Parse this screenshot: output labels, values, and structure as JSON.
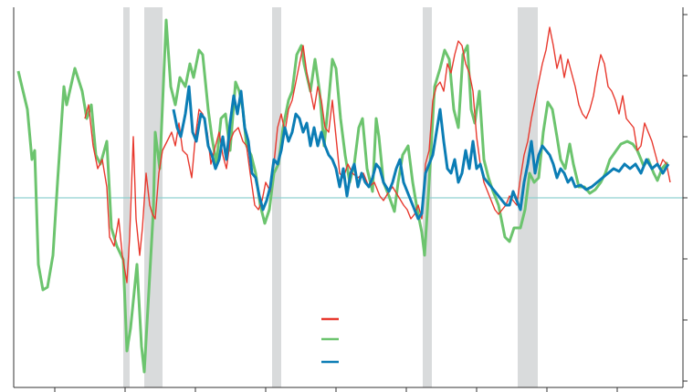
{
  "chart_data": {
    "type": "line",
    "xlim": [
      15,
      748
    ],
    "ylim": [
      -208,
      209
    ],
    "xticks": [
      60,
      137,
      214,
      291,
      368,
      445,
      522,
      599,
      676
    ],
    "yticks": [
      -201,
      -134,
      -67,
      0,
      67,
      134,
      201
    ],
    "reference_line": 0,
    "reference_color": "#8fd0d0",
    "band_color": "#d9dbdc",
    "shaded_regions": [
      [
        135,
        142
      ],
      [
        158,
        178
      ],
      [
        298,
        308
      ],
      [
        463,
        473
      ],
      [
        567,
        589
      ]
    ],
    "series": [
      {
        "color": "#6cc46e",
        "x": [
          20,
          30,
          35,
          38,
          42,
          47,
          52,
          58,
          63,
          70,
          73,
          82,
          90,
          95,
          100,
          105,
          110,
          117,
          122,
          128,
          135,
          139,
          143,
          150,
          155,
          158,
          163,
          168,
          170,
          175,
          182,
          187,
          192,
          197,
          203,
          208,
          212,
          218,
          222,
          228,
          232,
          237,
          242,
          247,
          252,
          258,
          262,
          266,
          270,
          275,
          280,
          285,
          290,
          295,
          300,
          305,
          310,
          316,
          320,
          325,
          330,
          333,
          340,
          345,
          350,
          355,
          360,
          364,
          368,
          373,
          378,
          383,
          388,
          393,
          397,
          402,
          408,
          412,
          415,
          420,
          426,
          432,
          436,
          441,
          447,
          452,
          457,
          462,
          465,
          470,
          476,
          482,
          487,
          492,
          497,
          502,
          507,
          512,
          516,
          520,
          525,
          530,
          535,
          540,
          546,
          553,
          558,
          563,
          570,
          575,
          580,
          585,
          590,
          595,
          600,
          605,
          610,
          614,
          619,
          624,
          628,
          634,
          640,
          646,
          652,
          658,
          663,
          668,
          675,
          680,
          687,
          693,
          698,
          705,
          710,
          716,
          720,
          725,
          731
        ],
        "values": [
          139,
          97,
          42,
          52,
          -73,
          -101,
          -98,
          -63,
          17,
          122,
          102,
          142,
          117,
          87,
          102,
          47,
          37,
          62,
          -33,
          -53,
          -68,
          -168,
          -143,
          -73,
          -163,
          -191,
          -103,
          -13,
          72,
          32,
          195,
          122,
          102,
          132,
          122,
          147,
          132,
          162,
          157,
          97,
          67,
          37,
          87,
          92,
          52,
          127,
          117,
          97,
          57,
          47,
          27,
          -8,
          -28,
          -13,
          27,
          37,
          77,
          107,
          117,
          157,
          167,
          147,
          117,
          152,
          117,
          57,
          107,
          152,
          142,
          87,
          47,
          17,
          37,
          77,
          87,
          32,
          7,
          87,
          67,
          17,
          2,
          -15,
          17,
          47,
          57,
          17,
          -13,
          -38,
          -63,
          17,
          122,
          142,
          162,
          152,
          97,
          77,
          157,
          167,
          97,
          82,
          117,
          42,
          22,
          7,
          -8,
          -43,
          -48,
          -33,
          -33,
          -13,
          27,
          17,
          22,
          72,
          105,
          97,
          67,
          42,
          32,
          59,
          37,
          12,
          12,
          5,
          9,
          17,
          27,
          42,
          52,
          59,
          62,
          59,
          52,
          35,
          42,
          27,
          19,
          32,
          39
        ]
      },
      {
        "color": "#e8392e",
        "x": [
          93,
          97,
          102,
          107,
          112,
          117,
          120,
          125,
          130,
          134,
          139,
          142,
          146,
          149,
          153,
          156,
          160,
          164,
          167,
          170,
          174,
          178,
          183,
          188,
          192,
          196,
          200,
          205,
          210,
          214,
          218,
          222,
          227,
          231,
          236,
          240,
          244,
          248,
          252,
          256,
          261,
          266,
          270,
          274,
          279,
          283,
          287,
          291,
          296,
          300,
          304,
          308,
          312,
          316,
          320,
          324,
          328,
          332,
          336,
          340,
          344,
          348,
          352,
          356,
          360,
          364,
          368,
          372,
          376,
          381,
          386,
          392,
          398,
          404,
          410,
          416,
          420,
          426,
          430,
          436,
          442,
          446,
          450,
          454,
          458,
          462,
          466,
          470,
          474,
          478,
          482,
          486,
          490,
          494,
          498,
          502,
          506,
          510,
          514,
          518,
          522,
          526,
          530,
          534,
          538,
          542,
          546,
          550,
          554,
          558,
          562,
          566,
          570,
          574,
          578,
          582,
          586,
          590,
          594,
          598,
          602,
          606,
          610,
          614,
          618,
          622,
          626,
          630,
          634,
          638,
          642,
          646,
          650,
          654,
          658,
          662,
          666,
          670,
          674,
          678,
          682,
          686,
          690,
          694,
          698,
          702,
          706,
          710,
          714,
          718,
          722,
          726,
          730,
          734
        ],
        "values": [
          87,
          102,
          57,
          32,
          42,
          12,
          -43,
          -53,
          -23,
          -63,
          -93,
          -43,
          67,
          -23,
          -63,
          -33,
          27,
          -8,
          -18,
          -23,
          27,
          52,
          62,
          72,
          57,
          82,
          52,
          47,
          22,
          67,
          97,
          92,
          72,
          37,
          57,
          72,
          47,
          32,
          62,
          72,
          77,
          62,
          57,
          27,
          -8,
          -13,
          -3,
          17,
          7,
          37,
          77,
          92,
          72,
          97,
          107,
          127,
          147,
          167,
          137,
          117,
          97,
          122,
          107,
          77,
          72,
          107,
          67,
          27,
          22,
          37,
          27,
          22,
          27,
          12,
          17,
          2,
          -3,
          7,
          12,
          2,
          -8,
          -13,
          -23,
          -18,
          -8,
          -23,
          37,
          52,
          107,
          122,
          127,
          117,
          147,
          137,
          157,
          172,
          167,
          147,
          137,
          117,
          67,
          37,
          17,
          7,
          -3,
          -13,
          -18,
          -13,
          -8,
          2,
          -3,
          -8,
          22,
          47,
          62,
          87,
          107,
          127,
          147,
          162,
          187,
          167,
          142,
          157,
          132,
          152,
          137,
          122,
          102,
          92,
          87,
          97,
          112,
          137,
          157,
          147,
          122,
          117,
          107,
          92,
          112,
          87,
          82,
          77,
          52,
          57,
          82,
          72,
          62,
          47,
          32,
          42,
          37,
          17
        ]
      },
      {
        "color": "#0b7db5",
        "x": [
          190,
          194,
          198,
          203,
          207,
          211,
          215,
          220,
          224,
          228,
          232,
          236,
          240,
          244,
          248,
          252,
          256,
          260,
          264,
          268,
          272,
          276,
          280,
          284,
          288,
          292,
          296,
          300,
          304,
          308,
          312,
          316,
          320,
          324,
          328,
          332,
          336,
          340,
          344,
          348,
          352,
          356,
          360,
          364,
          368,
          372,
          376,
          380,
          384,
          388,
          392,
          396,
          400,
          404,
          408,
          412,
          416,
          420,
          426,
          430,
          434,
          438,
          442,
          446,
          450,
          454,
          458,
          462,
          466,
          470,
          474,
          478,
          482,
          486,
          490,
          494,
          498,
          502,
          506,
          510,
          514,
          518,
          522,
          526,
          530,
          534,
          538,
          542,
          546,
          550,
          554,
          558,
          562,
          566,
          570,
          574,
          578,
          582,
          586,
          590,
          594,
          598,
          602,
          606,
          610,
          614,
          618,
          622,
          626,
          630,
          636,
          642,
          648,
          654,
          660,
          666,
          672,
          678,
          684,
          690,
          696,
          702,
          708,
          714,
          720,
          726,
          732
        ],
        "values": [
          97,
          77,
          67,
          92,
          122,
          72,
          62,
          92,
          87,
          57,
          47,
          32,
          42,
          67,
          42,
          82,
          112,
          92,
          117,
          77,
          62,
          27,
          22,
          2,
          -13,
          -3,
          12,
          42,
          37,
          52,
          77,
          62,
          72,
          92,
          87,
          72,
          82,
          57,
          77,
          57,
          72,
          57,
          47,
          42,
          32,
          12,
          32,
          2,
          27,
          37,
          12,
          27,
          17,
          12,
          22,
          37,
          32,
          17,
          7,
          17,
          32,
          42,
          17,
          7,
          -3,
          -13,
          -23,
          -17,
          27,
          37,
          47,
          72,
          97,
          62,
          32,
          27,
          42,
          17,
          27,
          52,
          32,
          62,
          32,
          37,
          22,
          17,
          12,
          7,
          2,
          -3,
          -8,
          -8,
          7,
          -3,
          -13,
          17,
          37,
          62,
          27,
          47,
          57,
          52,
          47,
          37,
          22,
          32,
          27,
          17,
          22,
          12,
          14,
          9,
          12,
          17,
          22,
          27,
          32,
          29,
          37,
          32,
          37,
          27,
          42,
          32,
          37,
          27,
          37
        ]
      }
    ]
  }
}
